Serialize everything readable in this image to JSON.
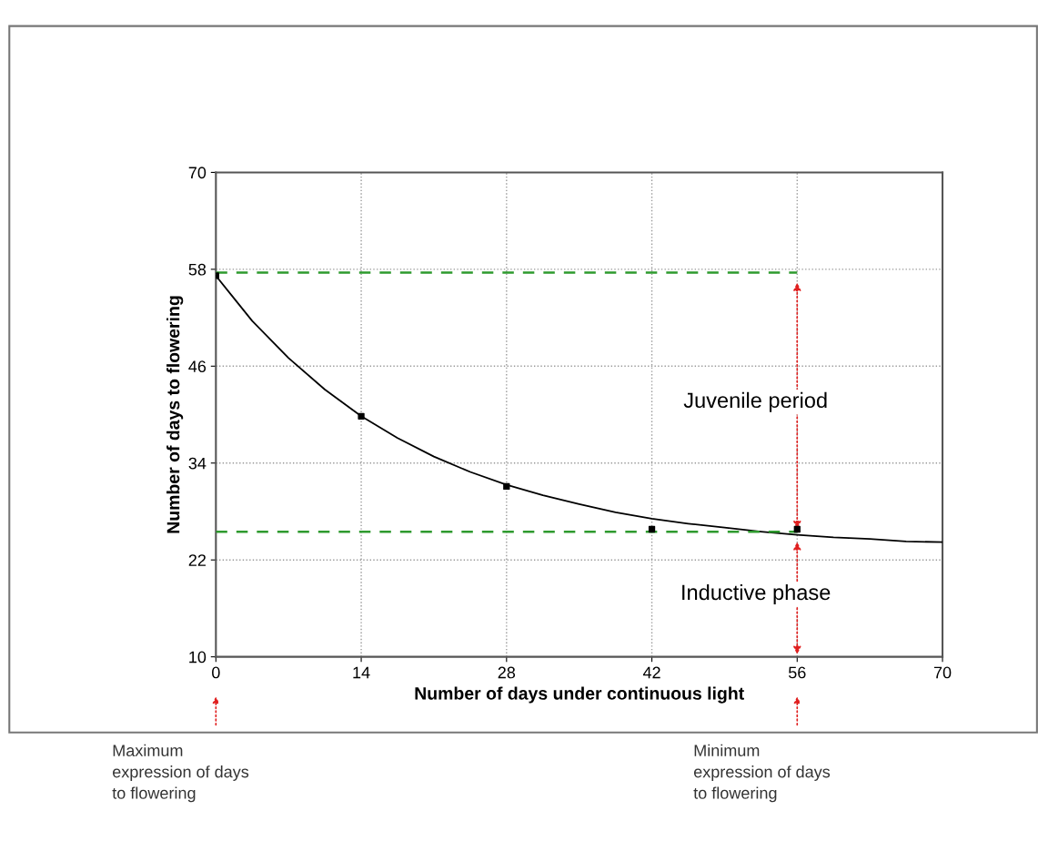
{
  "chart_data": {
    "type": "line",
    "xlabel": "Number of days under continuous light",
    "ylabel": "Number of days to flowering",
    "xlim": [
      0,
      70
    ],
    "xticks": [
      0,
      14,
      28,
      42,
      56,
      70
    ],
    "ylim": [
      10,
      70
    ],
    "yticks": [
      10,
      22,
      34,
      46,
      58,
      70
    ],
    "grid": true,
    "series": [
      {
        "color": "#000000",
        "line_style": "solid",
        "marker": "none",
        "x": [
          0,
          3.5,
          7,
          10.5,
          14,
          17.5,
          21,
          24.5,
          28,
          31.5,
          35,
          38.5,
          42,
          45.5,
          49,
          52.5,
          56,
          59.5,
          63,
          66.5,
          70
        ],
        "values": [
          57.2,
          51.6,
          47.0,
          43.1,
          39.8,
          37.1,
          34.8,
          32.9,
          31.3,
          30.0,
          28.9,
          27.9,
          27.1,
          26.5,
          26.0,
          25.5,
          25.1,
          24.8,
          24.6,
          24.3,
          24.2
        ]
      },
      {
        "type": "scatter",
        "color": "#000000",
        "marker": "square",
        "x": [
          0,
          14,
          28,
          42,
          56
        ],
        "values": [
          57.2,
          39.8,
          31.1,
          25.8,
          25.8
        ]
      },
      {
        "color": "#2e9a2e",
        "line_style": "dashed",
        "marker": "none",
        "x": [
          0,
          56
        ],
        "values": [
          57.6,
          57.6
        ]
      },
      {
        "color": "#2e9a2e",
        "line_style": "dashed",
        "marker": "none",
        "x": [
          0,
          56
        ],
        "values": [
          25.5,
          25.5
        ]
      }
    ],
    "annotations": [
      "Juvenile period",
      "Inductive phase",
      "Maximum\nexpression of days\nto flowering",
      "Minimum\nexpression of days\nto flowering"
    ]
  }
}
